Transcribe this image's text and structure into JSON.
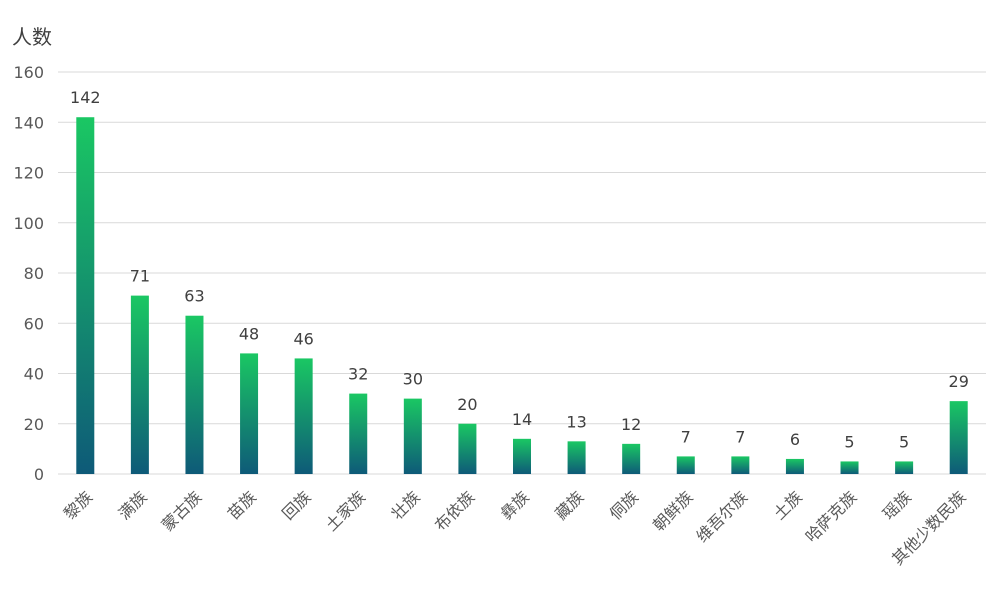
{
  "chart_data": {
    "type": "bar",
    "ylabel": "人数",
    "ylim": [
      0,
      160
    ],
    "yticks": [
      0,
      20,
      40,
      60,
      80,
      100,
      120,
      140,
      160
    ],
    "grid": true,
    "categories": [
      "黎族",
      "满族",
      "蒙古族",
      "苗族",
      "回族",
      "土家族",
      "壮族",
      "布依族",
      "彝族",
      "藏族",
      "侗族",
      "朝鲜族",
      "维吾尔族",
      "土族",
      "哈萨克族",
      "瑶族",
      "其他少数民族"
    ],
    "values": [
      142,
      71,
      63,
      48,
      46,
      32,
      30,
      20,
      14,
      13,
      12,
      7,
      7,
      6,
      5,
      5,
      29
    ],
    "colors": {
      "bar_top": "#1ac763",
      "bar_bottom": "#0e5a78",
      "grid": "#d9d9d9",
      "text": "#595959",
      "label": "#404040"
    }
  }
}
